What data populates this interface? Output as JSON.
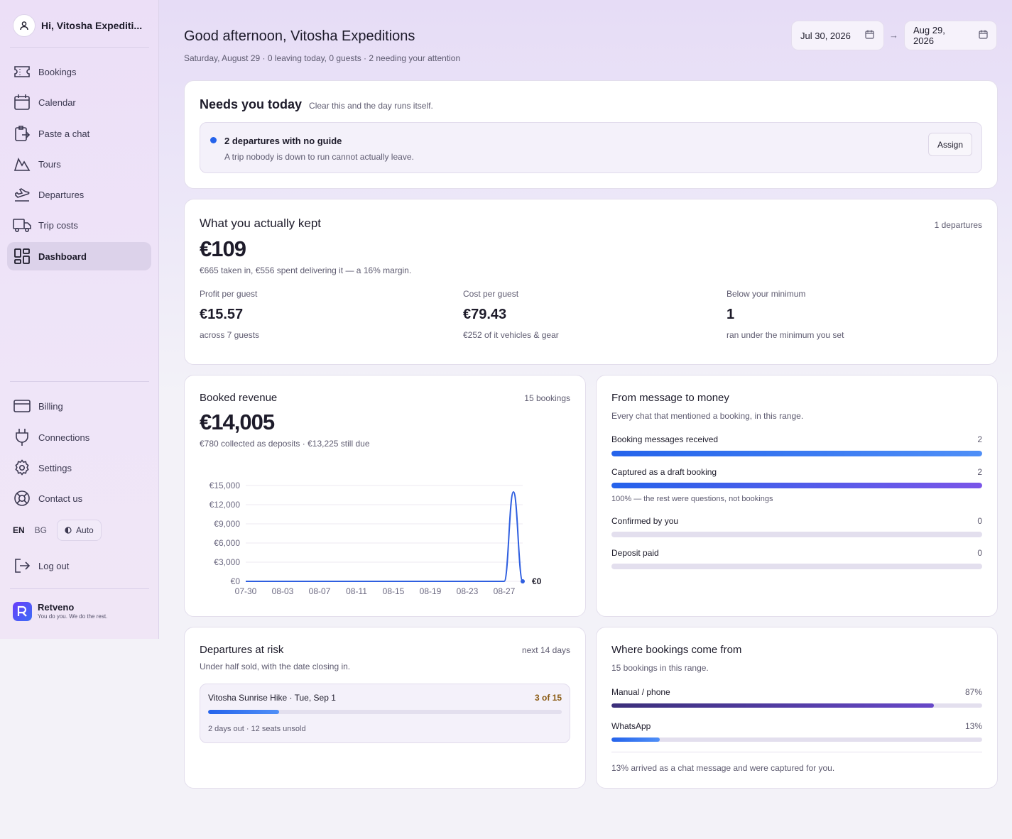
{
  "sidebar": {
    "user": "Hi, Vitosha Expediti...",
    "nav": [
      {
        "label": "Bookings",
        "icon": "ticket-icon",
        "name": "bookings"
      },
      {
        "label": "Calendar",
        "icon": "calendar-icon",
        "name": "calendar"
      },
      {
        "label": "Paste a chat",
        "icon": "paste-icon",
        "name": "paste-a-chat"
      },
      {
        "label": "Tours",
        "icon": "mountain-icon",
        "name": "tours"
      },
      {
        "label": "Departures",
        "icon": "plane-departure-icon",
        "name": "departures"
      },
      {
        "label": "Trip costs",
        "icon": "truck-icon",
        "name": "trip-costs"
      },
      {
        "label": "Dashboard",
        "icon": "dashboard-icon",
        "name": "dashboard"
      }
    ],
    "bottom_nav": [
      {
        "label": "Billing",
        "icon": "credit-card-icon",
        "name": "billing"
      },
      {
        "label": "Connections",
        "icon": "plug-icon",
        "name": "connections"
      },
      {
        "label": "Settings",
        "icon": "gear-icon",
        "name": "settings"
      },
      {
        "label": "Contact us",
        "icon": "lifebuoy-icon",
        "name": "contact-us"
      }
    ],
    "languages": [
      "EN",
      "BG"
    ],
    "theme": "Auto",
    "logout": "Log out",
    "brand": {
      "name": "Retveno",
      "tagline": "You do you. We do the rest."
    }
  },
  "header": {
    "greeting": "Good afternoon, Vitosha Expeditions",
    "subtitle": "Saturday, August 29 · 0 leaving today, 0 guests · 2 needing your attention",
    "date_from": "Jul 30, 2026",
    "date_to": "Aug 29, 2026",
    "arrow": "→"
  },
  "needs": {
    "title": "Needs you today",
    "hint": "Clear this and the day runs itself.",
    "item_title": "2 departures with no guide",
    "item_desc": "A trip nobody is down to run cannot actually leave.",
    "action": "Assign"
  },
  "kept": {
    "title": "What you actually kept",
    "count": "1 departures",
    "amount": "€109",
    "desc": "€665 taken in, €556 spent delivering it — a 16% margin.",
    "stats": [
      {
        "label": "Profit per guest",
        "value": "€15.57",
        "sub": "across 7 guests"
      },
      {
        "label": "Cost per guest",
        "value": "€79.43",
        "sub": "€252 of it vehicles & gear"
      },
      {
        "label": "Below your minimum",
        "value": "1",
        "sub": "ran under the minimum you set"
      }
    ]
  },
  "revenue": {
    "title": "Booked revenue",
    "count": "15 bookings",
    "amount": "€14,005",
    "desc": "€780 collected as deposits · €13,225 still due",
    "end_label": "€0"
  },
  "chart_data": {
    "type": "line",
    "title": "",
    "xlabel": "",
    "ylabel": "",
    "ylim": [
      0,
      15000
    ],
    "yticks": [
      0,
      3000,
      6000,
      9000,
      12000,
      15000
    ],
    "ytick_labels": [
      "€0",
      "€3,000",
      "€6,000",
      "€9,000",
      "€12,000",
      "€15,000"
    ],
    "xtick_labels": [
      "07-30",
      "08-03",
      "08-07",
      "08-11",
      "08-15",
      "08-19",
      "08-23",
      "08-27"
    ],
    "x": [
      "07-30",
      "07-31",
      "08-01",
      "08-02",
      "08-03",
      "08-04",
      "08-05",
      "08-06",
      "08-07",
      "08-08",
      "08-09",
      "08-10",
      "08-11",
      "08-12",
      "08-13",
      "08-14",
      "08-15",
      "08-16",
      "08-17",
      "08-18",
      "08-19",
      "08-20",
      "08-21",
      "08-22",
      "08-23",
      "08-24",
      "08-25",
      "08-26",
      "08-27",
      "08-28",
      "08-29"
    ],
    "series": [
      {
        "values": [
          0,
          0,
          0,
          0,
          0,
          0,
          0,
          0,
          0,
          0,
          0,
          0,
          0,
          0,
          0,
          0,
          0,
          0,
          0,
          0,
          0,
          0,
          0,
          0,
          0,
          0,
          0,
          0,
          0,
          14005,
          0
        ]
      }
    ],
    "grid": true,
    "accent": "#2f5fe0"
  },
  "funnel": {
    "title": "From message to money",
    "desc": "Every chat that mentioned a booking, in this range.",
    "note": "100% — the rest were questions, not bookings",
    "steps": [
      {
        "label": "Booking messages received",
        "value": "2",
        "fraction": 1.0
      },
      {
        "label": "Captured as a draft booking",
        "value": "2",
        "fraction": 1.0
      },
      {
        "label": "Confirmed by you",
        "value": "0",
        "fraction": 0
      },
      {
        "label": "Deposit paid",
        "value": "0",
        "fraction": 0
      }
    ]
  },
  "risk": {
    "title": "Departures at risk",
    "range": "next 14 days",
    "desc": "Under half sold, with the date closing in.",
    "item": {
      "name": "Vitosha Sunrise Hike · Tue, Sep 1",
      "sold": "3 of 15",
      "fraction": 0.2,
      "detail": "2 days out · 12 seats unsold"
    }
  },
  "sources": {
    "title": "Where bookings come from",
    "desc": "15 bookings in this range.",
    "items": [
      {
        "label": "Manual / phone",
        "value": "87%",
        "fraction": 0.87
      },
      {
        "label": "WhatsApp",
        "value": "13%",
        "fraction": 0.13
      }
    ],
    "note": "13% arrived as a chat message and were captured for you."
  }
}
